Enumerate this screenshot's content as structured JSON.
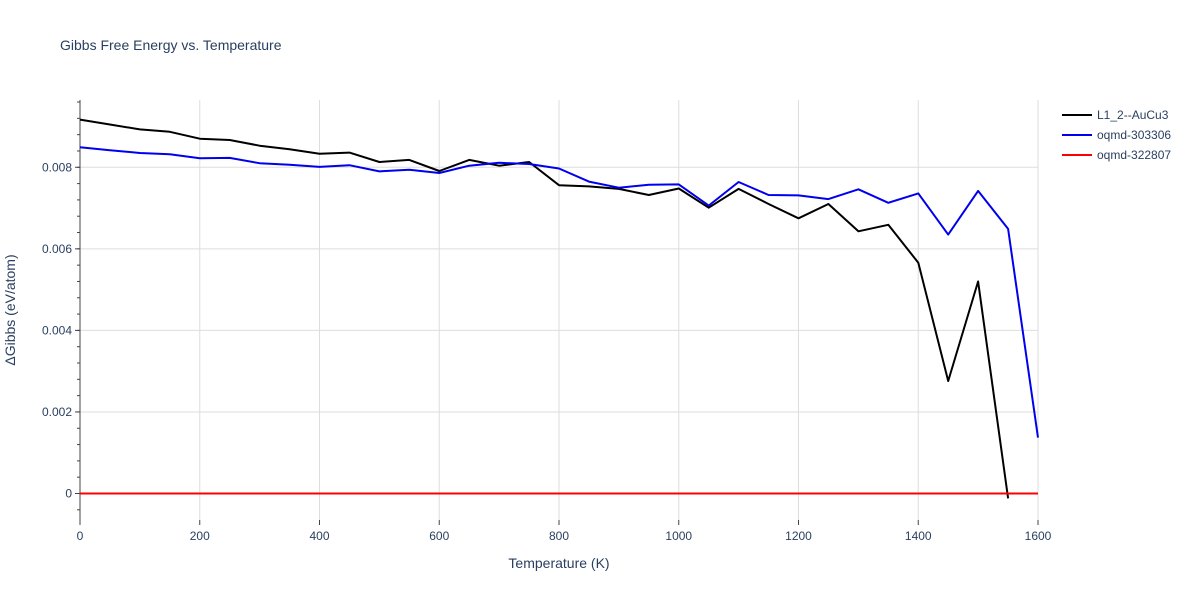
{
  "chart_data": {
    "type": "line",
    "title": "Gibbs Free Energy vs. Temperature",
    "xlabel": "Temperature (K)",
    "ylabel": "ΔGibbs (eV/atom)",
    "xlim": [
      0,
      1600
    ],
    "ylim": [
      -0.00065,
      0.00965
    ],
    "xticks": [
      0,
      200,
      400,
      600,
      800,
      1000,
      1200,
      1400,
      1600
    ],
    "xtick_labels": [
      "0",
      "200",
      "400",
      "600",
      "800",
      "1000",
      "1200",
      "1400",
      "1600"
    ],
    "yticks": [
      0,
      0.002,
      0.004,
      0.006,
      0.008
    ],
    "ytick_labels": [
      "0",
      "0.002",
      "0.004",
      "0.006",
      "0.008"
    ],
    "grid": true,
    "legend_position": "top-right",
    "series": [
      {
        "name": "L1_2--AuCu3",
        "color": "#000000",
        "x": [
          0,
          50,
          100,
          150,
          200,
          250,
          300,
          350,
          400,
          450,
          500,
          550,
          600,
          650,
          700,
          750,
          800,
          850,
          900,
          950,
          1000,
          1050,
          1100,
          1150,
          1200,
          1250,
          1300,
          1350,
          1400,
          1450,
          1500,
          1550
        ],
        "y": [
          0.00917,
          0.00905,
          0.00893,
          0.00887,
          0.0087,
          0.00867,
          0.00853,
          0.00844,
          0.00833,
          0.00836,
          0.00813,
          0.00818,
          0.00791,
          0.00818,
          0.00804,
          0.00813,
          0.00756,
          0.00753,
          0.00747,
          0.00732,
          0.00748,
          0.00701,
          0.00747,
          0.0071,
          0.00675,
          0.0071,
          0.00643,
          0.00659,
          0.00566,
          0.00276,
          0.0052,
          -0.00012
        ]
      },
      {
        "name": "oqmd-303306",
        "color": "#0000ee",
        "x": [
          0,
          50,
          100,
          150,
          200,
          250,
          300,
          350,
          400,
          450,
          500,
          550,
          600,
          650,
          700,
          750,
          800,
          850,
          900,
          950,
          1000,
          1050,
          1100,
          1150,
          1200,
          1250,
          1300,
          1350,
          1400,
          1450,
          1500,
          1550,
          1600
        ],
        "y": [
          0.00849,
          0.00842,
          0.00835,
          0.00832,
          0.00822,
          0.00823,
          0.0081,
          0.00806,
          0.00801,
          0.00805,
          0.0079,
          0.00794,
          0.00786,
          0.00804,
          0.00811,
          0.00808,
          0.00797,
          0.00765,
          0.0075,
          0.00757,
          0.00758,
          0.00706,
          0.00764,
          0.00732,
          0.00731,
          0.00722,
          0.00746,
          0.00713,
          0.00736,
          0.00635,
          0.00742,
          0.00649,
          0.00137
        ]
      },
      {
        "name": "oqmd-322807",
        "color": "#ff0000",
        "x": [
          0,
          1600
        ],
        "y": [
          0,
          0
        ]
      }
    ]
  }
}
